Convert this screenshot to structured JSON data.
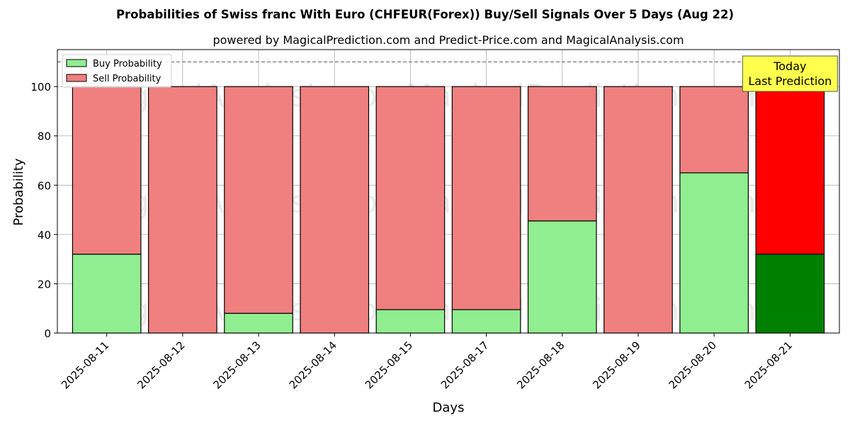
{
  "chart_data": {
    "type": "bar",
    "stacked": true,
    "title": "Probabilities of Swiss franc With Euro (CHFEUR(Forex)) Buy/Sell Signals Over 5 Days (Aug 22)",
    "subtitle": "powered by MagicalPrediction.com and Predict-Price.com and MagicalAnalysis.com",
    "xlabel": "Days",
    "ylabel": "Probability",
    "ylim": [
      0,
      115
    ],
    "yticks": [
      0,
      20,
      40,
      60,
      80,
      100
    ],
    "grid": true,
    "legend_position": "top-left",
    "reference_line": 110,
    "categories": [
      "2025-08-11",
      "2025-08-12",
      "2025-08-13",
      "2025-08-14",
      "2025-08-15",
      "2025-08-17",
      "2025-08-18",
      "2025-08-19",
      "2025-08-20",
      "2025-08-21"
    ],
    "series": [
      {
        "name": "Buy Probability",
        "values": [
          32,
          0,
          8,
          0,
          9.5,
          9.5,
          45.5,
          0,
          65,
          32
        ],
        "color": "#90ee90",
        "highlight_color": "#008000"
      },
      {
        "name": "Sell Probability",
        "values": [
          68,
          100,
          92,
          100,
          90.5,
          90.5,
          54.5,
          100,
          35,
          68
        ],
        "color": "#f08080",
        "highlight_color": "#ff0000"
      }
    ],
    "highlight_index": 9,
    "annotation": {
      "lines": [
        "Today",
        "Last Prediction"
      ],
      "color": "#ffff4d"
    },
    "watermarks": [
      "MagicalAnalysis.com",
      "MagicalPrediction.com"
    ]
  }
}
